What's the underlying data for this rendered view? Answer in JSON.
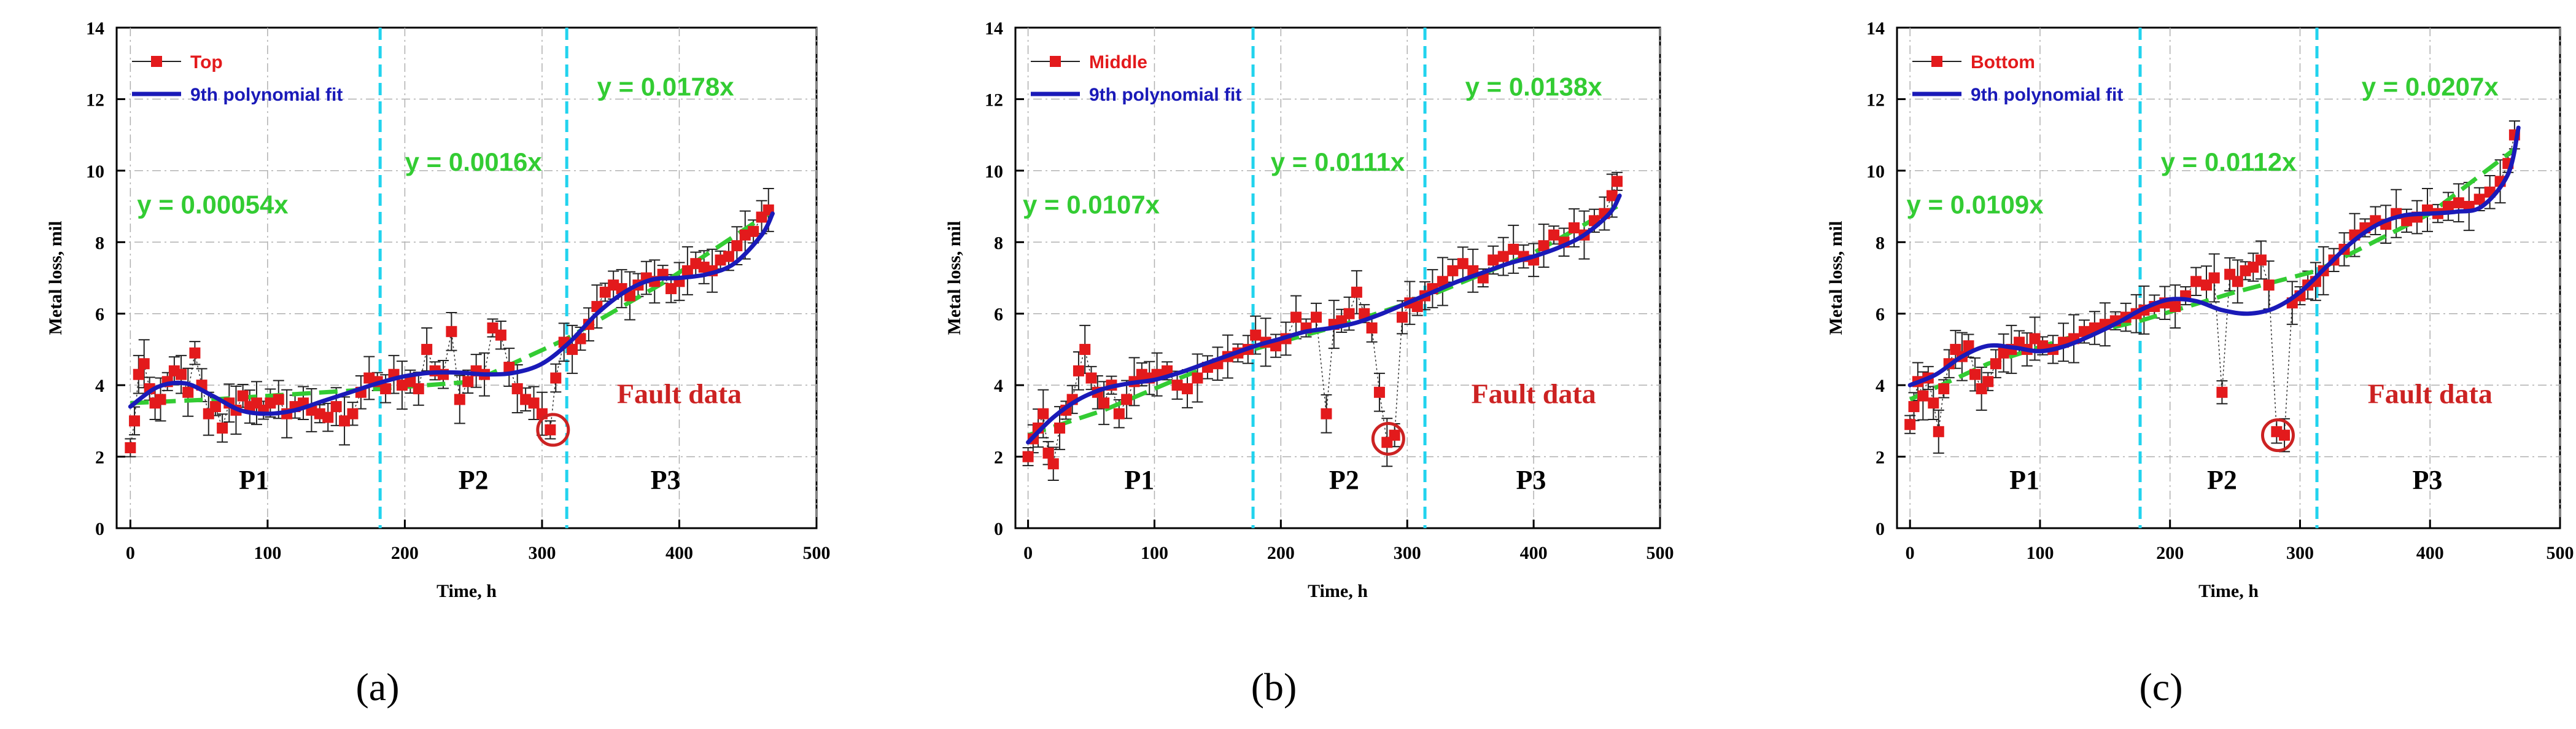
{
  "colors": {
    "data": "#e31a1c",
    "fit": "#1a1ab8",
    "linear": "#33cc33",
    "boundary": "#22d3ee",
    "grid": "#b0b0b0",
    "fault": "#cc2222"
  },
  "chart_data": [
    {
      "type": "scatter",
      "panel_label": "(a)",
      "xlabel": "Time, h",
      "ylabel": "Metal loss, mil",
      "xlim": [
        -10,
        500
      ],
      "ylim": [
        0,
        14
      ],
      "xticks": [
        "0",
        "100",
        "200",
        "300",
        "400",
        "500"
      ],
      "yticks": [
        "0",
        "2",
        "4",
        "6",
        "8",
        "10",
        "12",
        "14"
      ],
      "legend": {
        "data_label": "Top",
        "fit_label": "9th polynomial fit"
      },
      "boundaries": [
        182,
        318
      ],
      "periods": [
        {
          "label": "P1",
          "x": 90
        },
        {
          "label": "P2",
          "x": 250
        },
        {
          "label": "P3",
          "x": 390
        }
      ],
      "equations": [
        {
          "text": "y = 0.00054x",
          "x": 60,
          "y": 8.8
        },
        {
          "text": "y = 0.0016x",
          "x": 250,
          "y": 10.0
        },
        {
          "text": "y = 0.0178x",
          "x": 390,
          "y": 12.1
        }
      ],
      "fault_label": "Fault data",
      "fault_circle": {
        "x": 308,
        "y": 2.75
      },
      "series": [
        {
          "name": "Top",
          "x": [
            0,
            3,
            6,
            10,
            14,
            18,
            22,
            27,
            32,
            37,
            42,
            47,
            52,
            57,
            62,
            67,
            72,
            77,
            82,
            87,
            92,
            97,
            102,
            108,
            114,
            120,
            126,
            132,
            138,
            144,
            150,
            156,
            162,
            168,
            174,
            180,
            186,
            192,
            198,
            204,
            210,
            216,
            222,
            228,
            234,
            240,
            246,
            252,
            258,
            264,
            270,
            276,
            282,
            288,
            294,
            300,
            306,
            310,
            316,
            322,
            328,
            334,
            340,
            346,
            352,
            358,
            364,
            370,
            376,
            382,
            388,
            394,
            400,
            406,
            412,
            418,
            424,
            430,
            436,
            442,
            448,
            454,
            460,
            465
          ],
          "y": [
            2.25,
            3.0,
            4.3,
            4.6,
            3.9,
            3.5,
            3.6,
            4.1,
            4.4,
            4.3,
            3.8,
            4.9,
            4.0,
            3.2,
            3.4,
            2.8,
            3.5,
            3.3,
            3.7,
            3.4,
            3.5,
            3.3,
            3.5,
            3.6,
            3.2,
            3.4,
            3.5,
            3.3,
            3.2,
            3.1,
            3.4,
            3.0,
            3.2,
            3.8,
            4.2,
            4.1,
            3.9,
            4.3,
            4.0,
            4.1,
            3.9,
            5.0,
            4.4,
            4.3,
            5.5,
            3.6,
            4.1,
            4.4,
            4.3,
            5.6,
            5.4,
            4.5,
            3.9,
            3.6,
            3.5,
            3.2,
            2.75,
            4.2,
            5.2,
            5.0,
            5.3,
            5.7,
            6.2,
            6.6,
            6.8,
            6.7,
            6.5,
            6.8,
            7.0,
            6.9,
            7.1,
            6.7,
            6.9,
            7.2,
            7.4,
            7.3,
            7.2,
            7.5,
            7.6,
            7.9,
            8.2,
            8.3,
            8.7,
            8.9
          ]
        },
        {
          "name": "9th polynomial fit",
          "x": [
            0,
            20,
            40,
            60,
            80,
            100,
            120,
            140,
            160,
            180,
            200,
            220,
            240,
            260,
            280,
            300,
            320,
            340,
            360,
            380,
            400,
            420,
            440,
            460,
            468
          ],
          "y": [
            3.4,
            3.95,
            4.05,
            3.7,
            3.3,
            3.2,
            3.3,
            3.55,
            3.8,
            4.05,
            4.25,
            4.35,
            4.35,
            4.3,
            4.35,
            4.6,
            5.2,
            6.0,
            6.6,
            6.95,
            7.0,
            7.1,
            7.4,
            8.2,
            8.8
          ]
        },
        {
          "name": "linear fit",
          "x": [
            0,
            60,
            120,
            182,
            250,
            318,
            390,
            465
          ],
          "y": [
            3.5,
            3.6,
            3.75,
            3.9,
            4.1,
            5.3,
            6.9,
            8.8
          ]
        }
      ]
    },
    {
      "type": "scatter",
      "panel_label": "(b)",
      "xlabel": "Time, h",
      "ylabel": "Metal loss, mil",
      "xlim": [
        -10,
        500
      ],
      "ylim": [
        0,
        14
      ],
      "xticks": [
        "0",
        "100",
        "200",
        "300",
        "400",
        "500"
      ],
      "yticks": [
        "0",
        "2",
        "4",
        "6",
        "8",
        "10",
        "12",
        "14"
      ],
      "legend": {
        "data_label": "Middle",
        "fit_label": "9th polynomial fit"
      },
      "boundaries": [
        178,
        314
      ],
      "periods": [
        {
          "label": "P1",
          "x": 88
        },
        {
          "label": "P2",
          "x": 250
        },
        {
          "label": "P3",
          "x": 398
        }
      ],
      "equations": [
        {
          "text": "y = 0.0107x",
          "x": 50,
          "y": 8.8
        },
        {
          "text": "y = 0.0111x",
          "x": 245,
          "y": 10.0
        },
        {
          "text": "y = 0.0138x",
          "x": 400,
          "y": 12.1
        }
      ],
      "fault_label": "Fault data",
      "fault_circle": {
        "x": 285,
        "y": 2.5
      },
      "series": [
        {
          "name": "Middle",
          "x": [
            0,
            4,
            8,
            12,
            16,
            20,
            25,
            30,
            35,
            40,
            45,
            50,
            55,
            60,
            66,
            72,
            78,
            84,
            90,
            96,
            102,
            110,
            118,
            126,
            134,
            142,
            150,
            158,
            166,
            174,
            180,
            188,
            196,
            204,
            212,
            220,
            228,
            236,
            242,
            248,
            254,
            260,
            266,
            272,
            278,
            284,
            290,
            296,
            302,
            308,
            314,
            320,
            328,
            336,
            344,
            352,
            360,
            368,
            376,
            384,
            392,
            400,
            408,
            416,
            424,
            432,
            440,
            448,
            456,
            462,
            466
          ],
          "y": [
            2.0,
            2.5,
            2.8,
            3.2,
            2.1,
            1.8,
            2.8,
            3.3,
            3.6,
            4.4,
            5.0,
            4.2,
            3.8,
            3.5,
            4.0,
            3.2,
            3.6,
            4.1,
            4.3,
            4.2,
            4.3,
            4.4,
            4.0,
            3.9,
            4.2,
            4.5,
            4.6,
            4.8,
            4.9,
            5.0,
            5.4,
            5.2,
            5.1,
            5.3,
            5.9,
            5.6,
            5.9,
            3.2,
            5.7,
            5.8,
            6.0,
            6.6,
            6.0,
            5.6,
            3.8,
            2.4,
            2.6,
            5.9,
            6.3,
            6.2,
            6.5,
            6.7,
            6.9,
            7.2,
            7.4,
            7.2,
            7.0,
            7.5,
            7.6,
            7.8,
            7.6,
            7.5,
            7.9,
            8.2,
            8.0,
            8.4,
            8.2,
            8.6,
            8.8,
            9.3,
            9.7
          ]
        },
        {
          "name": "9th polynomial fit",
          "x": [
            0,
            20,
            40,
            60,
            80,
            100,
            120,
            140,
            160,
            180,
            200,
            220,
            240,
            260,
            280,
            300,
            320,
            340,
            360,
            380,
            400,
            420,
            440,
            460,
            468
          ],
          "y": [
            2.4,
            3.1,
            3.6,
            3.9,
            4.05,
            4.15,
            4.35,
            4.6,
            4.85,
            5.1,
            5.3,
            5.5,
            5.6,
            5.75,
            6.0,
            6.3,
            6.6,
            6.9,
            7.15,
            7.4,
            7.6,
            7.85,
            8.2,
            8.8,
            9.3
          ]
        },
        {
          "name": "linear fit",
          "x": [
            0,
            60,
            120,
            178,
            250,
            314,
            400,
            466
          ],
          "y": [
            2.6,
            3.3,
            4.2,
            5.0,
            5.7,
            6.45,
            7.7,
            9.0
          ]
        }
      ]
    },
    {
      "type": "scatter",
      "panel_label": "(c)",
      "xlabel": "Time, h",
      "ylabel": "Metal loss, mil",
      "xlim": [
        -10,
        500
      ],
      "ylim": [
        0,
        14
      ],
      "xticks": [
        "0",
        "100",
        "200",
        "300",
        "400",
        "500"
      ],
      "yticks": [
        "0",
        "2",
        "4",
        "6",
        "8",
        "10",
        "12",
        "14"
      ],
      "legend": {
        "data_label": "Bottom",
        "fit_label": "9th polynomial fit"
      },
      "boundaries": [
        177,
        313
      ],
      "periods": [
        {
          "label": "P1",
          "x": 88
        },
        {
          "label": "P2",
          "x": 240
        },
        {
          "label": "P3",
          "x": 398
        }
      ],
      "equations": [
        {
          "text": "y = 0.0109x",
          "x": 50,
          "y": 8.8
        },
        {
          "text": "y = 0.0112x",
          "x": 245,
          "y": 10.0
        },
        {
          "text": "y = 0.0207x",
          "x": 400,
          "y": 12.1
        }
      ],
      "fault_label": "Fault data",
      "fault_circle": {
        "x": 283,
        "y": 2.6
      },
      "series": [
        {
          "name": "Bottom",
          "x": [
            0,
            3,
            6,
            10,
            14,
            18,
            22,
            26,
            30,
            35,
            40,
            45,
            50,
            55,
            60,
            66,
            72,
            78,
            84,
            90,
            96,
            102,
            110,
            118,
            126,
            134,
            142,
            150,
            158,
            166,
            174,
            180,
            188,
            196,
            204,
            212,
            220,
            228,
            234,
            240,
            246,
            252,
            258,
            264,
            270,
            276,
            282,
            288,
            294,
            300,
            306,
            312,
            318,
            326,
            334,
            342,
            350,
            358,
            366,
            374,
            382,
            390,
            398,
            406,
            414,
            422,
            430,
            438,
            446,
            454,
            460,
            465
          ],
          "y": [
            2.9,
            3.4,
            4.1,
            3.7,
            4.2,
            3.5,
            2.7,
            3.9,
            4.6,
            5.0,
            4.8,
            5.1,
            4.3,
            3.9,
            4.1,
            4.6,
            4.9,
            5.0,
            5.2,
            5.0,
            5.3,
            5.1,
            5.0,
            5.2,
            5.3,
            5.5,
            5.6,
            5.7,
            5.8,
            5.9,
            6.0,
            6.1,
            6.2,
            6.3,
            6.2,
            6.5,
            6.9,
            6.8,
            7.0,
            3.8,
            7.1,
            6.9,
            7.2,
            7.3,
            7.5,
            6.8,
            2.7,
            2.6,
            6.3,
            6.5,
            6.8,
            6.9,
            7.2,
            7.5,
            7.8,
            8.2,
            8.4,
            8.6,
            8.5,
            8.8,
            8.6,
            8.7,
            8.9,
            8.8,
            9.0,
            9.1,
            9.0,
            9.2,
            9.4,
            9.7,
            10.2,
            11.0
          ]
        },
        {
          "name": "9th polynomial fit",
          "x": [
            0,
            20,
            40,
            60,
            80,
            100,
            120,
            140,
            160,
            180,
            200,
            220,
            240,
            260,
            280,
            300,
            320,
            340,
            360,
            380,
            400,
            420,
            440,
            460,
            468
          ],
          "y": [
            4.0,
            4.3,
            4.8,
            5.1,
            5.05,
            4.95,
            5.1,
            5.4,
            5.75,
            6.15,
            6.4,
            6.35,
            6.1,
            6.0,
            6.15,
            6.6,
            7.3,
            8.0,
            8.5,
            8.75,
            8.8,
            8.85,
            9.0,
            9.9,
            11.2
          ]
        },
        {
          "name": "linear fit",
          "x": [
            0,
            60,
            120,
            177,
            250,
            313,
            400,
            465
          ],
          "y": [
            3.6,
            4.6,
            5.3,
            5.8,
            6.6,
            7.2,
            8.8,
            10.6
          ]
        }
      ]
    }
  ]
}
